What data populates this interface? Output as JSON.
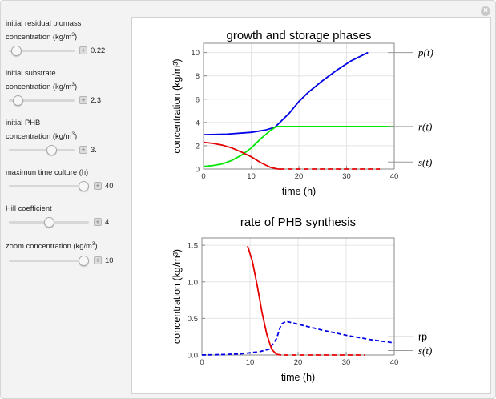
{
  "controls": [
    {
      "label_line1": "initial residual biomass",
      "label_line2": "concentration (kg/m",
      "sup": "3",
      "close": ")",
      "value": "0.22",
      "level": 0.05
    },
    {
      "label_line1": "initial substrate",
      "label_line2": "concentration (kg/m",
      "sup": "3",
      "close": ")",
      "value": "2.3",
      "level": 0.07
    },
    {
      "label_line1": "initial PHB",
      "label_line2": "concentration (kg/m",
      "sup": "3",
      "close": ")",
      "value": "3.",
      "level": 0.68
    },
    {
      "label_line1": "maximun time culture (h)",
      "label_line2": "",
      "sup": "",
      "close": "",
      "value": "40",
      "level": 1.0
    },
    {
      "label_line1": "Hill coefficient",
      "label_line2": "",
      "sup": "",
      "close": "",
      "value": "4",
      "level": 0.5
    },
    {
      "label_line1": "zoom concentration (kg/m",
      "label_line2": "",
      "sup": "3",
      "close": ")",
      "value": "10",
      "level": 1.0
    }
  ],
  "chart_data": [
    {
      "type": "line",
      "title": "growth and storage phases",
      "xlabel": "time (h)",
      "ylabel": "concentration (kg/m³)",
      "xlim": [
        0,
        40
      ],
      "ylim": [
        0,
        10.8
      ],
      "xticks": [
        "0",
        "10",
        "20",
        "30",
        "40"
      ],
      "yticks": [
        "0",
        "2",
        "4",
        "6",
        "8",
        "10"
      ],
      "grid": true,
      "series": [
        {
          "name": "p(t)",
          "color": "#0000e6",
          "style": "solid",
          "x": [
            0,
            5,
            10,
            13,
            15,
            16,
            18,
            20,
            22,
            25,
            28,
            31,
            34.5
          ],
          "y": [
            2.95,
            3.0,
            3.15,
            3.35,
            3.6,
            4.0,
            4.8,
            5.8,
            6.6,
            7.6,
            8.5,
            9.3,
            10.0
          ]
        },
        {
          "name": "r(t)",
          "color": "#00e600",
          "style": "solid",
          "x": [
            0,
            2,
            4,
            6,
            8,
            10,
            12,
            14,
            15,
            15.5,
            40
          ],
          "y": [
            0.22,
            0.3,
            0.45,
            0.75,
            1.2,
            1.8,
            2.6,
            3.3,
            3.58,
            3.65,
            3.65
          ]
        },
        {
          "name": "s(t)",
          "color": "#e60000",
          "style": "solid",
          "x": [
            0,
            2,
            4,
            6,
            8,
            10,
            12,
            14,
            15,
            15.5,
            16
          ],
          "y": [
            2.3,
            2.2,
            2.05,
            1.8,
            1.45,
            1.05,
            0.55,
            0.15,
            0.05,
            0.01,
            0.0
          ]
        },
        {
          "name": "s(t) dash",
          "color": "#e60000",
          "style": "dashed",
          "x": [
            16,
            37
          ],
          "y": [
            0,
            0
          ]
        }
      ],
      "labels": [
        {
          "text": "p(t)",
          "y": 10.0
        },
        {
          "text": "r(t)",
          "y": 3.65
        },
        {
          "text": "s(t)",
          "y": 0.6
        }
      ]
    },
    {
      "type": "line",
      "title": "rate of PHB synthesis",
      "xlabel": "time (h)",
      "ylabel": "concentration (kg/m³)",
      "xlim": [
        0,
        40
      ],
      "ylim": [
        0,
        1.6
      ],
      "xticks": [
        "0",
        "10",
        "20",
        "30",
        "40"
      ],
      "yticks": [
        "0.0",
        "0.5",
        "1.0",
        "1.5"
      ],
      "grid": true,
      "series": [
        {
          "name": "rp",
          "color": "#0000e6",
          "style": "dashed",
          "x": [
            0,
            4,
            8,
            12,
            14,
            15.5,
            16.5,
            17.5,
            20,
            25,
            30,
            35,
            40
          ],
          "y": [
            0.0,
            0.005,
            0.015,
            0.045,
            0.08,
            0.22,
            0.42,
            0.46,
            0.42,
            0.34,
            0.27,
            0.21,
            0.165
          ]
        },
        {
          "name": "s(t)",
          "color": "#e60000",
          "style": "solid",
          "x": [
            9.5,
            10.5,
            11.5,
            12.5,
            13.5,
            14.5,
            15.5,
            16.5
          ],
          "y": [
            1.49,
            1.28,
            0.95,
            0.58,
            0.28,
            0.08,
            0.01,
            0.0
          ]
        },
        {
          "name": "s(t) dash",
          "color": "#e60000",
          "style": "dashed",
          "x": [
            17,
            34
          ],
          "y": [
            0,
            0
          ]
        }
      ],
      "labels": [
        {
          "text": "rp",
          "y": 0.25
        },
        {
          "text": "s(t)",
          "y": 0.06
        }
      ]
    }
  ]
}
